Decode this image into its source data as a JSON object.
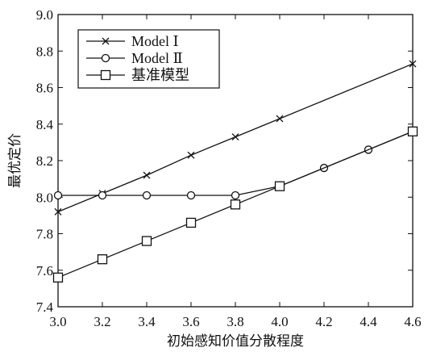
{
  "chart_data": {
    "type": "line",
    "title": "",
    "xlabel": "初始感知价值分散程度",
    "ylabel": "最优定价",
    "xlim": [
      3.0,
      4.6
    ],
    "ylim": [
      7.4,
      9.0
    ],
    "x_ticks": [
      3.0,
      3.2,
      3.4,
      3.6,
      3.8,
      4.0,
      4.2,
      4.4,
      4.6
    ],
    "x_tick_labels": [
      "3.0",
      "3.2",
      "3.4",
      "3.6",
      "3.8",
      "4.0",
      "4.2",
      "4.4",
      "4.6"
    ],
    "y_ticks": [
      7.4,
      7.6,
      7.8,
      8.0,
      8.2,
      8.4,
      8.6,
      8.8,
      9.0
    ],
    "y_tick_labels": [
      "7.4",
      "7.6",
      "7.8",
      "8.0",
      "8.2",
      "8.4",
      "8.6",
      "8.8",
      "9.0"
    ],
    "grid": false,
    "legend_position": "top-left",
    "colors": {
      "line": "#111111",
      "background": "#ffffff"
    },
    "series": [
      {
        "name": "Model Ⅰ",
        "marker": "x",
        "x": [
          3.0,
          3.2,
          3.4,
          3.6,
          3.8,
          4.0,
          4.6
        ],
        "values": [
          7.92,
          8.02,
          8.12,
          8.23,
          8.33,
          8.43,
          8.73
        ]
      },
      {
        "name": "Model Ⅱ",
        "marker": "circle",
        "x": [
          3.0,
          3.2,
          3.4,
          3.6,
          3.8,
          4.0,
          4.2,
          4.4,
          4.6
        ],
        "values": [
          8.01,
          8.01,
          8.01,
          8.01,
          8.01,
          8.06,
          8.16,
          8.26,
          8.36
        ]
      },
      {
        "name": "基准模型",
        "marker": "square",
        "x": [
          3.0,
          3.2,
          3.4,
          3.6,
          3.8,
          4.0,
          4.6
        ],
        "values": [
          7.56,
          7.66,
          7.76,
          7.86,
          7.96,
          8.06,
          8.36
        ]
      }
    ]
  }
}
